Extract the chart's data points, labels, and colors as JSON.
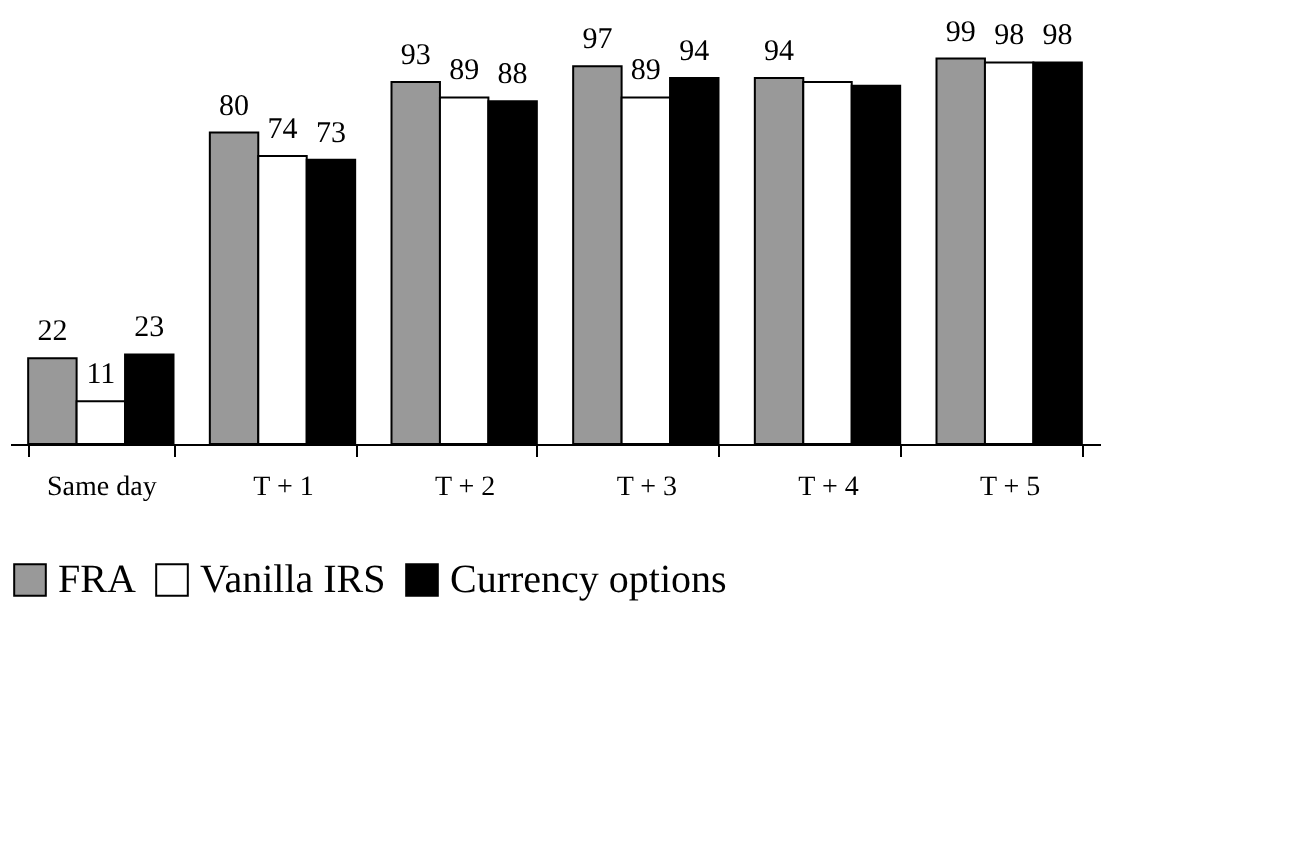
{
  "chart_data": {
    "type": "bar",
    "categories": [
      "Same day",
      "T + 1",
      "T + 2",
      "T + 3",
      "T + 4",
      "T + 5"
    ],
    "series": [
      {
        "name": "FRA",
        "color": "#999999",
        "values": [
          22,
          80,
          93,
          97,
          94,
          99
        ],
        "value_labels": [
          "22",
          "80",
          "93",
          "97",
          "94",
          "99"
        ]
      },
      {
        "name": "Vanilla IRS",
        "color": "#ffffff",
        "values": [
          11,
          74,
          89,
          89,
          93,
          98
        ],
        "value_labels": [
          "11",
          "74",
          "89",
          "89",
          null,
          "98"
        ]
      },
      {
        "name": "Currency options",
        "color": "#000000",
        "values": [
          23,
          73,
          88,
          94,
          92,
          98
        ],
        "value_labels": [
          "23",
          "73",
          "88",
          "94",
          null,
          "98"
        ]
      }
    ],
    "legend": "bottom",
    "grid": false,
    "tick_labels": "x"
  }
}
